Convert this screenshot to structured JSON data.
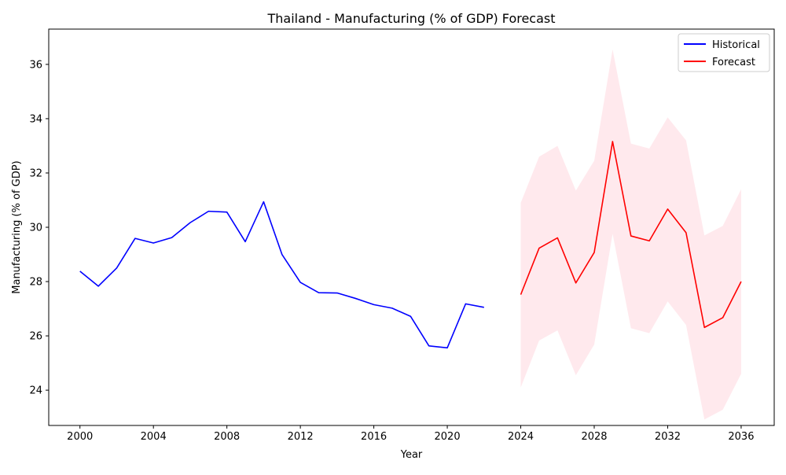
{
  "chart_data": {
    "type": "line",
    "title": "Thailand - Manufacturing (% of GDP) Forecast",
    "xlabel": "Year",
    "ylabel": "Manufacturing (% of GDP)",
    "xlim": [
      1998.3,
      2037.8
    ],
    "ylim": [
      22.7,
      37.3
    ],
    "xticks": [
      2000,
      2004,
      2008,
      2012,
      2016,
      2020,
      2024,
      2028,
      2032,
      2036
    ],
    "yticks": [
      24,
      26,
      28,
      30,
      32,
      34,
      36
    ],
    "grid": false,
    "legend_position": "top-right",
    "series": [
      {
        "name": "Historical",
        "color": "#0000ff",
        "x": [
          2000,
          2001,
          2002,
          2003,
          2004,
          2005,
          2006,
          2007,
          2008,
          2009,
          2010,
          2011,
          2012,
          2013,
          2014,
          2015,
          2016,
          2017,
          2018,
          2019,
          2020,
          2021,
          2022
        ],
        "y": [
          28.38,
          27.83,
          28.5,
          29.59,
          29.42,
          29.62,
          30.17,
          30.59,
          30.56,
          29.47,
          30.94,
          29.0,
          27.97,
          27.59,
          27.58,
          27.38,
          27.15,
          27.02,
          26.72,
          25.63,
          25.56,
          27.18,
          27.05
        ]
      },
      {
        "name": "Forecast",
        "color": "#ff0000",
        "x": [
          2024,
          2025,
          2026,
          2027,
          2028,
          2029,
          2030,
          2031,
          2032,
          2033,
          2034,
          2035,
          2036
        ],
        "y": [
          27.52,
          29.23,
          29.61,
          27.95,
          29.07,
          33.16,
          29.68,
          29.5,
          30.67,
          29.8,
          26.31,
          26.67,
          28.0
        ]
      }
    ],
    "confidence_band": {
      "color": "#ffc0cb",
      "x": [
        2024,
        2025,
        2026,
        2027,
        2028,
        2029,
        2030,
        2031,
        2032,
        2033,
        2034,
        2035,
        2036
      ],
      "upper": [
        30.9,
        32.6,
        33.0,
        31.35,
        32.45,
        36.55,
        33.08,
        32.9,
        34.05,
        33.2,
        29.7,
        30.05,
        31.4
      ],
      "lower": [
        24.1,
        25.83,
        26.2,
        24.55,
        25.68,
        29.76,
        26.28,
        26.1,
        27.27,
        26.4,
        22.92,
        23.28,
        24.6
      ]
    }
  }
}
